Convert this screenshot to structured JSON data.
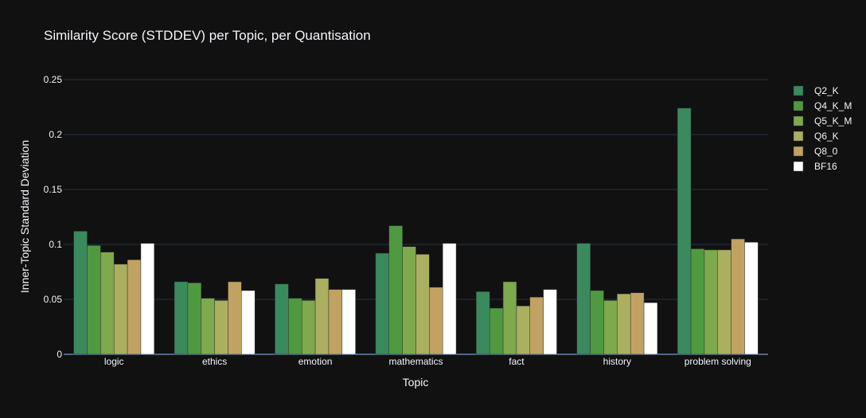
{
  "chart_data": {
    "type": "bar",
    "title": "Similarity Score (STDDEV) per Topic, per Quantisation",
    "xlabel": "Topic",
    "ylabel": "Inner-Topic Standard Deviation",
    "categories": [
      "logic",
      "ethics",
      "emotion",
      "mathematics",
      "fact",
      "history",
      "problem solving"
    ],
    "ylim": [
      0,
      0.25
    ],
    "yticks": [
      0,
      0.05,
      0.1,
      0.15,
      0.2,
      0.25
    ],
    "ytick_labels": [
      "0",
      "0.05",
      "0.1",
      "0.15",
      "0.2",
      "0.25"
    ],
    "grid": true,
    "legend_position": "right",
    "series": [
      {
        "name": "Q2_K",
        "color": "#3a8a5e",
        "values": [
          0.112,
          0.066,
          0.064,
          0.092,
          0.057,
          0.101,
          0.224
        ]
      },
      {
        "name": "Q4_K_M",
        "color": "#4f9a40",
        "values": [
          0.099,
          0.065,
          0.051,
          0.117,
          0.042,
          0.058,
          0.096
        ]
      },
      {
        "name": "Q5_K_M",
        "color": "#7ea94c",
        "values": [
          0.093,
          0.051,
          0.049,
          0.098,
          0.066,
          0.049,
          0.095
        ]
      },
      {
        "name": "Q6_K",
        "color": "#abb060",
        "values": [
          0.082,
          0.049,
          0.069,
          0.091,
          0.044,
          0.055,
          0.095
        ]
      },
      {
        "name": "Q8_0",
        "color": "#c2a262",
        "values": [
          0.086,
          0.066,
          0.059,
          0.061,
          0.052,
          0.056,
          0.105
        ]
      },
      {
        "name": "BF16",
        "color": "#ffffff",
        "values": [
          0.101,
          0.058,
          0.059,
          0.101,
          0.059,
          0.047,
          0.102
        ]
      }
    ]
  },
  "colors": {
    "background": "#111111",
    "gridline": "#283442",
    "axis_line": "#506784",
    "text": "#f2f5fa",
    "bar_outline": "#333333"
  }
}
